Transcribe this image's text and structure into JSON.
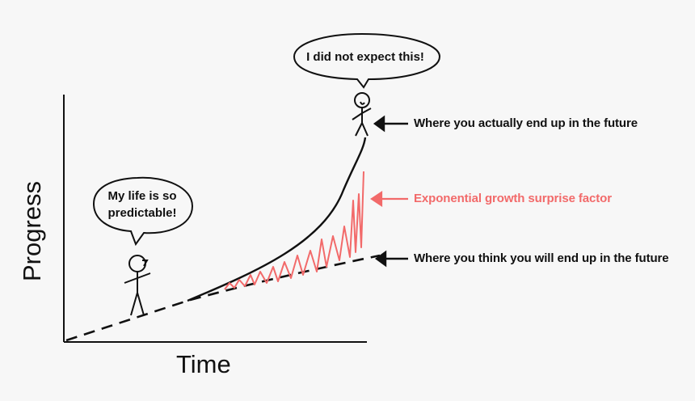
{
  "axes": {
    "x_label": "Time",
    "y_label": "Progress"
  },
  "bubbles": {
    "now": "My life is so predictable!",
    "future": "I did not expect this!"
  },
  "annotations": {
    "actual": "Where you actually end up in the future",
    "surprise": "Exponential growth surprise factor",
    "expected": "Where you think you will end up in the future"
  },
  "colors": {
    "ink": "#111111",
    "surprise": "#f26a6a",
    "background": "#f7f7f7"
  },
  "icons": [
    "arrow-left-icon",
    "stick-figure-icon",
    "speech-bubble-icon"
  ]
}
